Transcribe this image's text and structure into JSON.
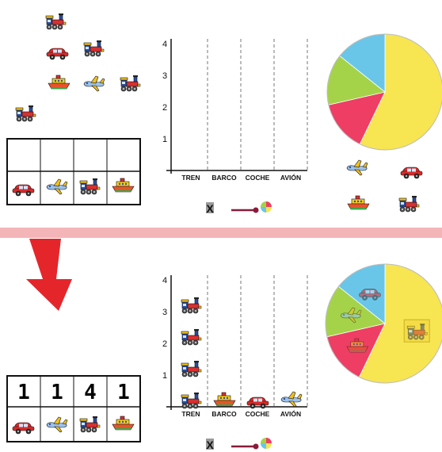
{
  "axis_ticks": [
    "1",
    "2",
    "3",
    "4"
  ],
  "categories": [
    "TREN",
    "BARCO",
    "COCHE",
    "AVIÓN"
  ],
  "tally_counts": [
    "1",
    "1",
    "4",
    "1"
  ],
  "tally_icons": [
    "car-icon",
    "airplane-icon",
    "train-icon",
    "boat-icon"
  ],
  "chart_data": [
    {
      "type": "bar",
      "categories": [
        "TREN",
        "BARCO",
        "COCHE",
        "AVIÓN"
      ],
      "values": [
        0,
        0,
        0,
        0
      ],
      "ylim": [
        0,
        4
      ],
      "yticks": [
        "1",
        "2",
        "3",
        "4"
      ]
    },
    {
      "type": "bar",
      "categories": [
        "TREN",
        "BARCO",
        "COCHE",
        "AVIÓN"
      ],
      "values": [
        4,
        1,
        1,
        1
      ],
      "ylim": [
        0,
        4
      ],
      "yticks": [
        "1",
        "2",
        "3",
        "4"
      ]
    },
    {
      "type": "pie",
      "labels": [
        "train",
        "boat",
        "airplane",
        "car"
      ],
      "values": [
        4,
        1,
        1,
        1
      ],
      "colors": [
        "#f7e552",
        "#ef3e63",
        "#a4d34a",
        "#69c6e8"
      ]
    }
  ],
  "colors": {
    "divider": "#f4b5b8",
    "arrow": "#e4262b",
    "pie_yellow": "#f7e552",
    "pie_red": "#ef3e63",
    "pie_green": "#a4d34a",
    "pie_blue": "#69c6e8",
    "connector": "#8a1b3a"
  }
}
